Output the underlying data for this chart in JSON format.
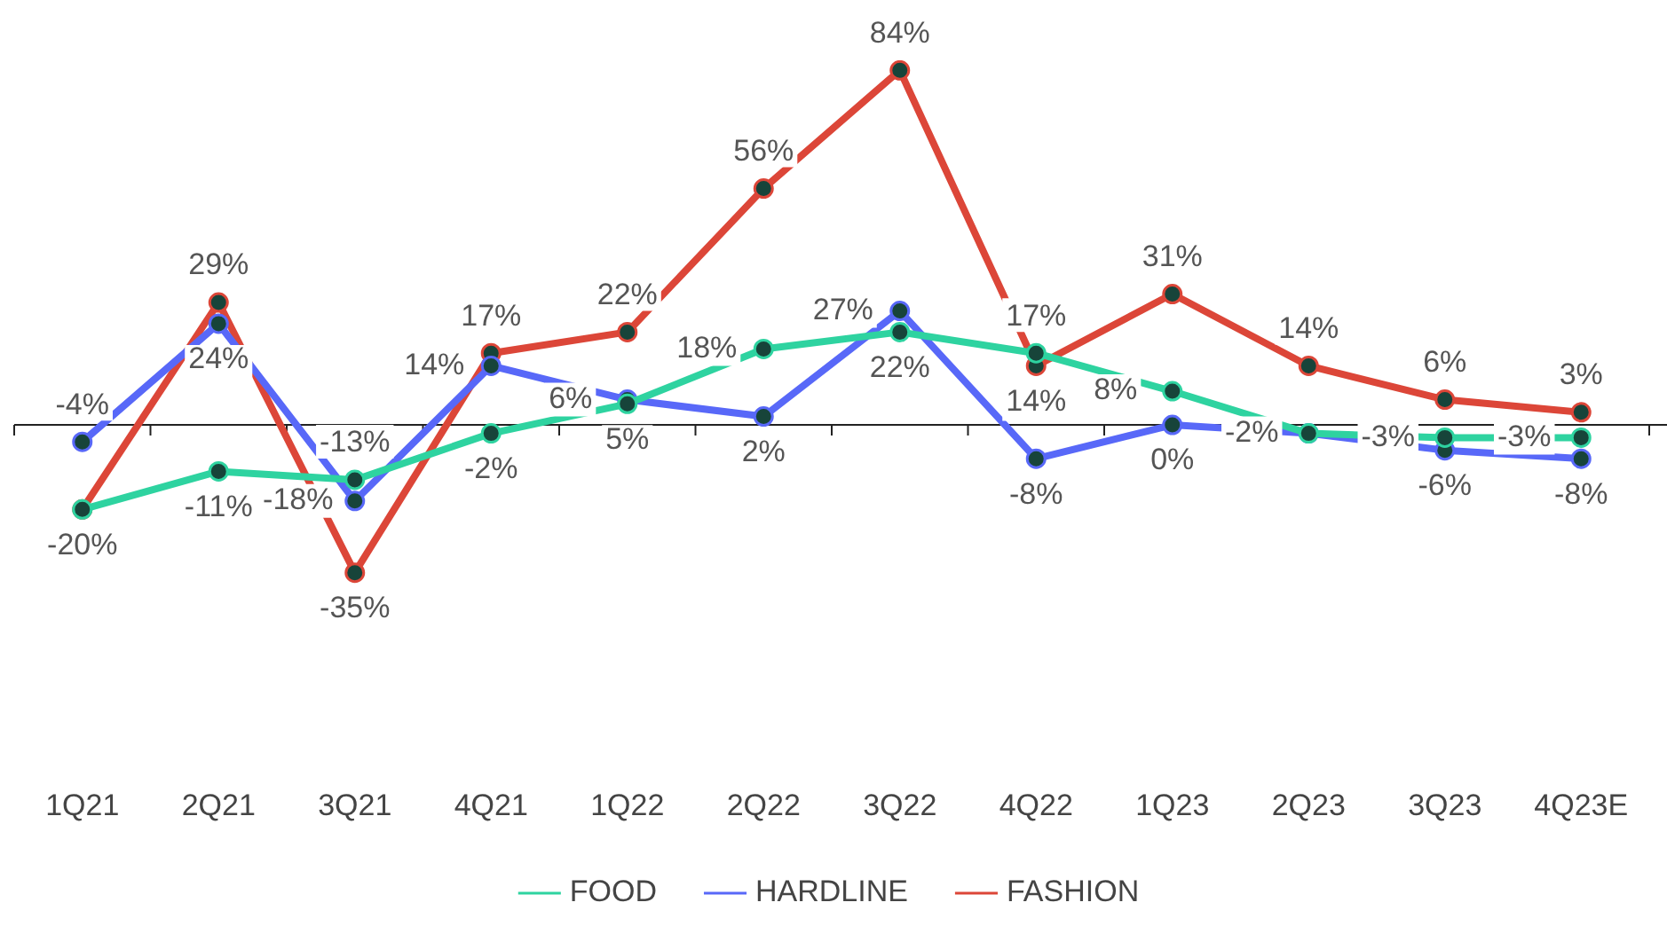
{
  "chart_data": {
    "type": "line",
    "categories": [
      "1Q21",
      "2Q21",
      "3Q21",
      "4Q21",
      "1Q22",
      "2Q22",
      "3Q22",
      "4Q22",
      "1Q23",
      "2Q23",
      "3Q23",
      "4Q23E"
    ],
    "series": [
      {
        "name": "FOOD",
        "color": "#2ed3a0",
        "values": [
          -20,
          -11,
          -13,
          -2,
          5,
          18,
          22,
          17,
          8,
          -2,
          -3,
          -3
        ],
        "value_labels": [
          null,
          "-11%",
          "-13%",
          "-2%",
          "5%",
          "18%",
          "22%",
          "17%",
          "8%",
          "-2%",
          "-3%",
          "-3%"
        ]
      },
      {
        "name": "HARDLINE",
        "color": "#5868f8",
        "values": [
          -4,
          24,
          -18,
          14,
          6,
          2,
          27,
          -8,
          0,
          -2,
          -6,
          -8
        ],
        "value_labels": [
          "-4%",
          "24%",
          "-18%",
          "14%",
          "6%",
          "2%",
          "27%",
          "-8%",
          "0%",
          null,
          "-6%",
          "-8%"
        ]
      },
      {
        "name": "FASHION",
        "color": "#dc4638",
        "values": [
          -20,
          29,
          -35,
          17,
          22,
          56,
          84,
          14,
          31,
          14,
          6,
          3
        ],
        "value_labels": [
          "-20%",
          "29%",
          "-35%",
          "17%",
          "22%",
          "56%",
          "84%",
          "14%",
          "31%",
          "14%",
          "6%",
          "3%"
        ]
      }
    ],
    "marker": "circle",
    "line_style": "solid",
    "legend": "bottom",
    "grid": false
  }
}
